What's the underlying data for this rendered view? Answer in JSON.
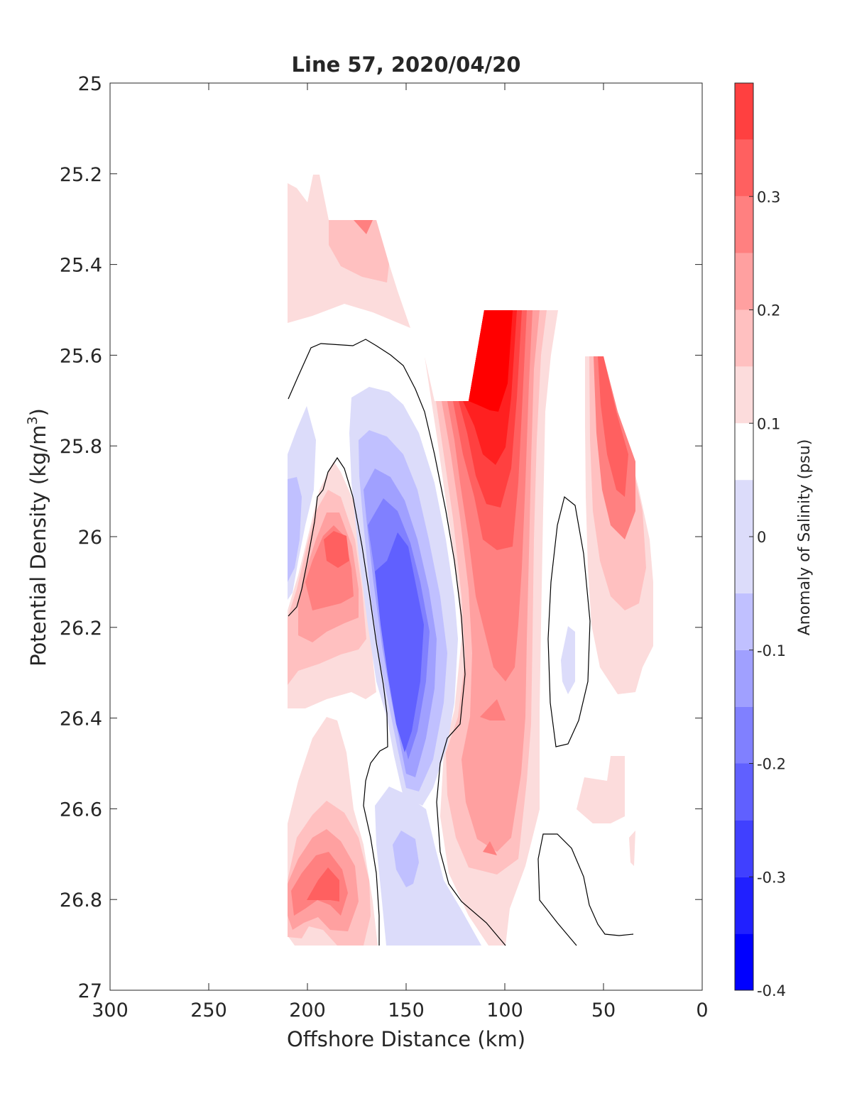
{
  "chart_data": {
    "type": "heatmap",
    "subtype": "filled-contour",
    "title": "Line 57, 2020/04/20",
    "xlabel": "Offshore Distance (km)",
    "ylabel": "Potential Density (kg/m",
    "ylabel_superscript": "3",
    "ylabel_suffix": ")",
    "colorbar_label": "Anomaly of Salinity (psu)",
    "xlim": [
      0,
      300
    ],
    "x_reversed": true,
    "ylim": [
      25,
      27
    ],
    "y_reversed": true,
    "xticks": [
      300,
      250,
      200,
      150,
      100,
      50,
      0
    ],
    "xtick_labels": [
      "300",
      "250",
      "200",
      "150",
      "100",
      "50",
      "0"
    ],
    "yticks": [
      25,
      25.2,
      25.4,
      25.6,
      25.8,
      26,
      26.2,
      26.4,
      26.6,
      26.8,
      27
    ],
    "ytick_labels": [
      "25",
      "25.2",
      "25.4",
      "25.6",
      "25.8",
      "26",
      "26.2",
      "26.4",
      "26.6",
      "26.8",
      "27"
    ],
    "clim": [
      -0.4,
      0.4
    ],
    "colorbar_ticks": [
      -0.4,
      -0.3,
      -0.2,
      -0.1,
      0,
      0.1,
      0.2,
      0.3
    ],
    "colorbar_tick_labels": [
      "-0.4",
      "-0.3",
      "-0.2",
      "-0.1",
      "0",
      "0.1",
      "0.2",
      "0.3"
    ],
    "levels": [
      -0.4,
      -0.35,
      -0.3,
      -0.25,
      -0.2,
      -0.15,
      -0.1,
      -0.05,
      0.05,
      0.1,
      0.15,
      0.2,
      0.25,
      0.3,
      0.35,
      0.4
    ],
    "level_colors": [
      "#0000ff",
      "#2020ff",
      "#4040ff",
      "#6060ff",
      "#8080ff",
      "#a0a0ff",
      "#c0c0ff",
      "#dcdcfa",
      "#ffffff",
      "#fcdcdc",
      "#ffc0c0",
      "#ffa0a0",
      "#ff8080",
      "#ff6060",
      "#ff4040",
      "#ff2020",
      "#ff0000"
    ],
    "features": [
      {
        "name": "positive anomaly core",
        "x": 105,
        "y": 25.75,
        "value": 0.4
      },
      {
        "name": "positive anomaly band",
        "x": 105,
        "y": 26.35,
        "value": 0.15
      },
      {
        "name": "negative anomaly core",
        "x": 152,
        "y": 26.2,
        "value": -0.28
      },
      {
        "name": "positive anomaly",
        "x": 185,
        "y": 26.05,
        "value": 0.25
      },
      {
        "name": "negative anomaly",
        "x": 205,
        "y": 26.0,
        "value": -0.12
      },
      {
        "name": "positive anomaly",
        "x": 190,
        "y": 26.75,
        "value": 0.2
      },
      {
        "name": "negative anomaly",
        "x": 150,
        "y": 26.72,
        "value": -0.1
      },
      {
        "name": "positive anomaly",
        "x": 45,
        "y": 25.9,
        "value": 0.25
      },
      {
        "name": "positive anomaly",
        "x": 190,
        "y": 25.35,
        "value": 0.12
      },
      {
        "name": "negative anomaly",
        "x": 68,
        "y": 26.28,
        "value": -0.07
      }
    ]
  }
}
